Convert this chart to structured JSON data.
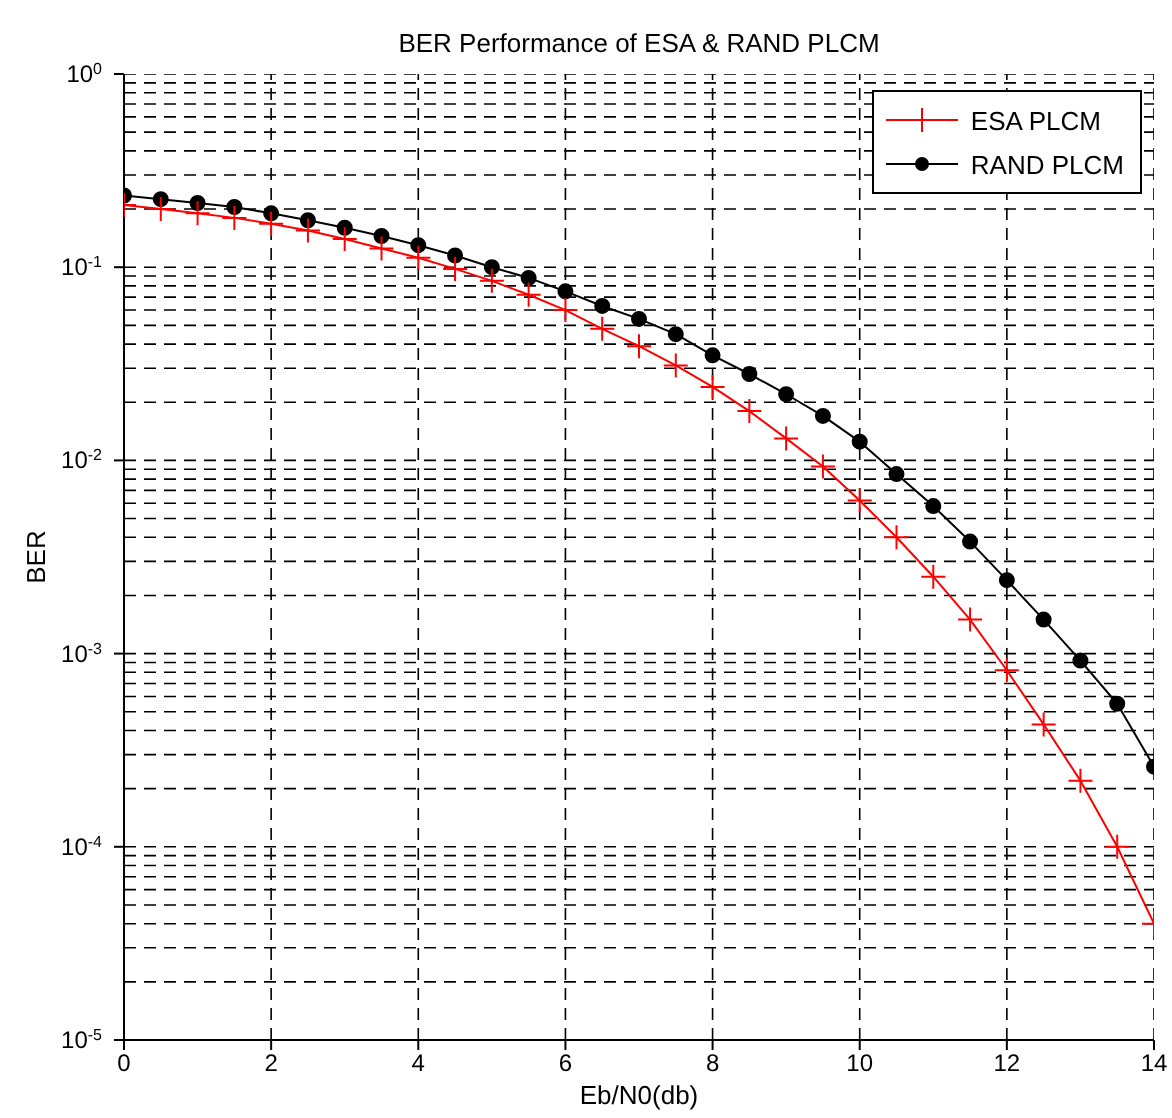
{
  "chart_data": {
    "type": "line",
    "title": "BER Performance of ESA & RAND PLCM",
    "xlabel": "Eb/N0(db)",
    "ylabel": "BER",
    "log": "y",
    "grid": true,
    "legend": "top right",
    "line_style": "solid",
    "x": [
      0,
      0.5,
      1,
      1.5,
      2,
      2.5,
      3,
      3.5,
      4,
      4.5,
      5,
      5.5,
      6,
      6.5,
      7,
      7.5,
      8,
      8.5,
      9,
      9.5,
      10,
      10.5,
      11,
      11.5,
      12,
      12.5,
      13,
      13.5,
      14
    ],
    "series": [
      {
        "name": "ESA PLCM",
        "color": "#ff0000",
        "marker": "cross",
        "values": [
          0.21,
          0.2,
          0.19,
          0.18,
          0.168,
          0.155,
          0.14,
          0.125,
          0.112,
          0.098,
          0.085,
          0.072,
          0.06,
          0.048,
          0.039,
          0.031,
          0.024,
          0.018,
          0.013,
          0.0093,
          0.0062,
          0.004,
          0.0025,
          0.0015,
          0.00082,
          0.00043,
          0.00022,
          0.0001,
          4e-05
        ]
      },
      {
        "name": "RAND PLCM",
        "color": "#000000",
        "marker": "circle",
        "values": [
          0.235,
          0.225,
          0.215,
          0.205,
          0.19,
          0.175,
          0.16,
          0.145,
          0.13,
          0.115,
          0.1,
          0.088,
          0.075,
          0.063,
          0.054,
          0.045,
          0.035,
          0.028,
          0.022,
          0.017,
          0.0125,
          0.0085,
          0.0058,
          0.0038,
          0.0024,
          0.0015,
          0.00092,
          0.00055,
          0.00026
        ]
      }
    ],
    "xlim": [
      0,
      14
    ],
    "xticks": [
      0,
      2,
      4,
      6,
      8,
      10,
      12,
      14
    ],
    "ylim": [
      1e-05,
      1
    ],
    "yticks": [
      {
        "value": 1e-05,
        "label": "10$^{-5}$"
      },
      {
        "value": 0.0001,
        "label": "10$^{-4}$"
      },
      {
        "value": 0.001,
        "label": "10$^{-3}$"
      },
      {
        "value": 0.01,
        "label": "10$^{-2}$"
      },
      {
        "value": 0.1,
        "label": "10$^{-1}$"
      },
      {
        "value": 1,
        "label": "10$^{0}$"
      }
    ]
  }
}
